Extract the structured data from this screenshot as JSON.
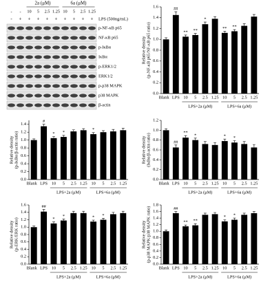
{
  "blot": {
    "compound_labels": [
      "2a (μM)",
      "6a (μM)"
    ],
    "dose_row": [
      "-",
      "-",
      "10",
      "5",
      "2.5",
      "1.25",
      "10",
      "5",
      "2.5",
      "1.25"
    ],
    "lps_row": [
      "-",
      "+",
      "+",
      "+",
      "+",
      "+",
      "+",
      "+",
      "+",
      "+"
    ],
    "lps_label": "LPS (500ng/mL)",
    "bands": [
      "p-NF-κB p65",
      "NF-κB p65",
      "p-IκBα",
      "IκBα",
      "p-ERK1/2",
      "ERK1/2",
      "p-p38 MAPK",
      "p38 MAPK",
      "β-actin"
    ]
  },
  "chart_data": [
    {
      "type": "bar",
      "ylabel": [
        "Relative density",
        "(p-NF-κB p65/NF-κB p65 ratio)"
      ],
      "categories": [
        "Blank",
        "LPS",
        "10",
        "5",
        "2.5",
        "1.25",
        "10",
        "5",
        "2.5",
        "1.25"
      ],
      "group_labels": [
        "LPS+2a (μM)",
        "LPS+6a (μM)"
      ],
      "values": [
        1.0,
        1.45,
        1.05,
        1.08,
        1.28,
        1.38,
        1.12,
        1.15,
        1.25,
        1.42
      ],
      "errors": [
        0.03,
        0.06,
        0.03,
        0.03,
        0.04,
        0.04,
        0.03,
        0.03,
        0.04,
        0.04
      ],
      "significance": [
        null,
        "##",
        "**",
        "**",
        "*",
        null,
        "**",
        "**",
        null,
        null
      ],
      "color": "#000000",
      "ylim": [
        0,
        1.6
      ],
      "yticks": [
        {
          "value": 0,
          "label": "0.0"
        },
        0.2,
        0.4,
        0.6,
        0.8,
        {
          "value": 1,
          "label": "1.0"
        },
        1.2,
        1.4,
        1.6
      ]
    },
    {
      "type": "bar",
      "ylabel": [
        "Relative density",
        "(p-IκBα/β-actin ratio)"
      ],
      "categories": [
        "Blank",
        "LPS",
        "10",
        "5",
        "2.5",
        "1.25",
        "10",
        "5",
        "2.5",
        "1.25"
      ],
      "group_labels": [
        "LPS+2a (μM)",
        "LPS+6a (μM)"
      ],
      "values": [
        1.0,
        1.35,
        1.05,
        1.08,
        1.22,
        1.25,
        1.15,
        1.2,
        1.22,
        1.25
      ],
      "errors": [
        0.03,
        0.05,
        0.04,
        0.04,
        0.04,
        0.04,
        0.04,
        0.04,
        0.05,
        0.05
      ],
      "significance": [
        null,
        "#",
        "*",
        "*",
        null,
        null,
        "*",
        null,
        null,
        null
      ],
      "color": "#000000",
      "ylim": [
        0,
        1.5
      ],
      "yticks": [
        {
          "value": 0,
          "label": "0.0"
        },
        0.2,
        0.4,
        0.6,
        0.8,
        {
          "value": 1,
          "label": "1.0"
        },
        1.2,
        1.4
      ]
    },
    {
      "type": "bar",
      "ylabel": [
        "Relative density",
        "(IκBα/β-actin ratio)"
      ],
      "categories": [
        "Blank",
        "LPS",
        "10",
        "5",
        "2.5",
        "1.25",
        "10",
        "5",
        "2.5",
        "1.25"
      ],
      "group_labels": [
        "LPS+2a (μM)",
        "LPS+6a (μM)"
      ],
      "values": [
        1.0,
        0.65,
        0.85,
        0.8,
        0.72,
        0.7,
        0.78,
        0.75,
        0.72,
        0.65
      ],
      "errors": [
        0.03,
        0.05,
        0.04,
        0.04,
        0.05,
        0.05,
        0.04,
        0.04,
        0.05,
        0.06
      ],
      "significance": [
        null,
        "##",
        "**",
        "*",
        null,
        null,
        "*",
        "*",
        null,
        null
      ],
      "color": "#000000",
      "ylim": [
        0,
        1.2
      ],
      "yticks": [
        {
          "value": 0,
          "label": "0.0"
        },
        0.2,
        0.4,
        0.6,
        0.8,
        {
          "value": 1,
          "label": "1.0"
        },
        1.2
      ]
    },
    {
      "type": "bar",
      "ylabel": [
        "Relative density",
        "(p-ERK/ERK ratio)"
      ],
      "categories": [
        "Blank",
        "LPS",
        "10",
        "5",
        "2.5",
        "1.25",
        "10",
        "5",
        "2.5",
        "1.25"
      ],
      "group_labels": [
        "LPS+2a (μM)",
        "LPS+6a (μM)"
      ],
      "values": [
        1.0,
        1.42,
        1.1,
        1.18,
        1.38,
        1.38,
        1.15,
        1.2,
        1.35,
        1.38
      ],
      "errors": [
        0.03,
        0.06,
        0.04,
        0.04,
        0.05,
        0.05,
        0.04,
        0.04,
        0.05,
        0.05
      ],
      "significance": [
        null,
        "##",
        "*",
        "*",
        null,
        null,
        "*",
        "*",
        null,
        null
      ],
      "color": "#000000",
      "ylim": [
        0,
        1.6
      ],
      "yticks": [
        {
          "value": 0,
          "label": "0.0"
        },
        0.2,
        0.4,
        0.6,
        0.8,
        {
          "value": 1,
          "label": "1.0"
        },
        1.2,
        1.4,
        1.6
      ]
    },
    {
      "type": "bar",
      "ylabel": [
        "Relative density",
        "(p-p38 MAPK/p38 MAPK ratio)"
      ],
      "categories": [
        "Blank",
        "LPS",
        "10",
        "5",
        "2.5",
        "1.25",
        "10",
        "5",
        "2.5",
        "1.25"
      ],
      "group_labels": [
        "LPS+2a (μM)",
        "LPS+6a (μM)"
      ],
      "values": [
        1.0,
        1.55,
        1.15,
        1.18,
        1.5,
        1.52,
        1.3,
        1.35,
        1.5,
        1.55
      ],
      "errors": [
        0.04,
        0.05,
        0.04,
        0.05,
        0.05,
        0.05,
        0.05,
        0.05,
        0.05,
        0.05
      ],
      "significance": [
        null,
        "##",
        "**",
        "**",
        null,
        null,
        "*",
        "*",
        null,
        null
      ],
      "color": "#000000",
      "ylim": [
        0,
        1.8
      ],
      "yticks": [
        {
          "value": 0,
          "label": "0.0"
        },
        0.2,
        0.4,
        0.6,
        0.8,
        {
          "value": 1,
          "label": "1.0"
        },
        1.2,
        1.4,
        1.6,
        1.8
      ]
    }
  ]
}
